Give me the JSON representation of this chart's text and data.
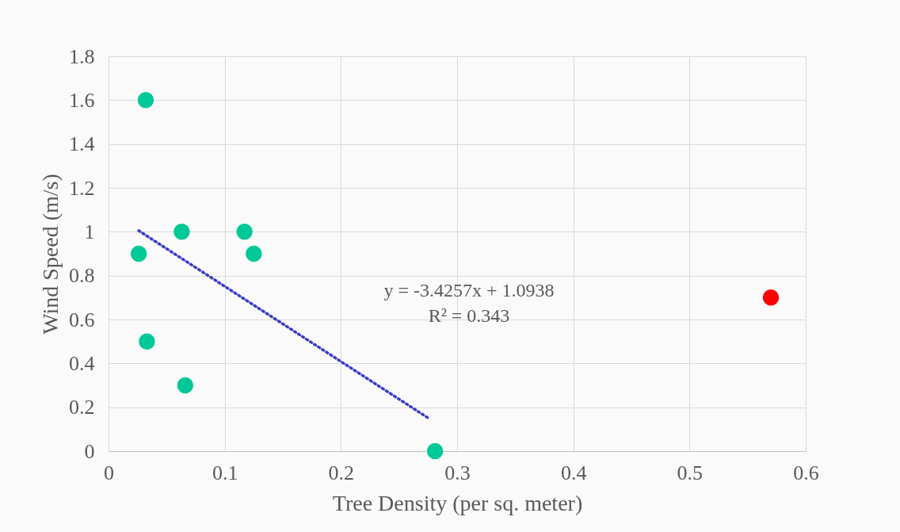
{
  "chart_data": {
    "type": "scatter",
    "xlabel": "Tree Density (per sq. meter)",
    "ylabel": "Wind Speed (m/s)",
    "xlim": [
      0,
      0.6
    ],
    "xticks": [
      0,
      0.1,
      0.2,
      0.3,
      0.4,
      0.5,
      0.6
    ],
    "ylim": [
      0,
      1.8
    ],
    "yticks": [
      0,
      0.2,
      0.4,
      0.6,
      0.8,
      1,
      1.2,
      1.4,
      1.6,
      1.8
    ],
    "grid": true,
    "marker": "circle",
    "series": [
      {
        "color": "#00c896",
        "x": [
          0.032,
          0.063,
          0.026,
          0.117,
          0.125,
          0.033,
          0.066,
          0.281
        ],
        "values": [
          1.6,
          1.0,
          0.9,
          1.0,
          0.9,
          0.5,
          0.3,
          0
        ]
      },
      {
        "color": "#ff0000",
        "x": [
          0.57
        ],
        "values": [
          0.7
        ]
      },
      {
        "type": "line",
        "color": "#3a3acc",
        "line_style": "dotted",
        "marker": "none",
        "x": [
          0.026,
          0.276
        ],
        "values": [
          1.005,
          0.148
        ]
      }
    ],
    "annotations": [
      "y = -3.4257x + 1.0938",
      "R² = 0.343"
    ]
  }
}
